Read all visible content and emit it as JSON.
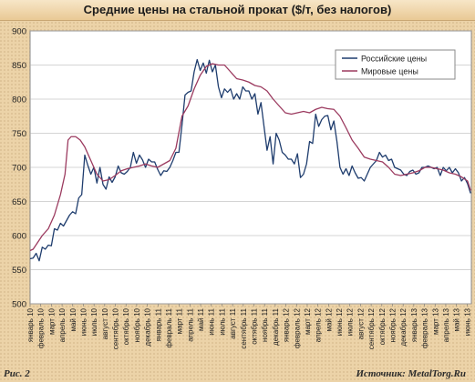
{
  "chart_data": {
    "type": "line",
    "title": "Средние цены на стальной прокат ($/т, без налогов)",
    "ylim": [
      500,
      900
    ],
    "yticks": [
      500,
      550,
      600,
      650,
      700,
      750,
      800,
      850,
      900
    ],
    "xlabel": "",
    "ylabel": "",
    "grid": true,
    "legend_placement": "top-right",
    "categories": [
      "январь 10",
      "февраль 10",
      "март 10",
      "апрель 10",
      "май 10",
      "июнь 10",
      "июль 10",
      "август 10",
      "сентябрь 10",
      "октябрь 10",
      "ноябрь 10",
      "декабрь 10",
      "январь 11",
      "февраль 11",
      "март 11",
      "апрель 11",
      "май 11",
      "июнь 11",
      "июль 11",
      "август 11",
      "сентябрь 11",
      "октябрь 11",
      "ноябрь 11",
      "декабрь 11",
      "январь 12",
      "февраль 12",
      "март 12",
      "апрель 12",
      "май 12",
      "июнь 12",
      "июль 12",
      "август 12",
      "сентябрь 12",
      "октябрь 12",
      "ноябрь 12",
      "декабрь 12",
      "январь 13",
      "февраль 13",
      "март 13",
      "апрель 13",
      "май 13",
      "июнь 13"
    ],
    "series": [
      {
        "name": "Российские цены",
        "color": "#1f3d6e",
        "points": [
          [
            0,
            566
          ],
          [
            0.2,
            567
          ],
          [
            0.4,
            574
          ],
          [
            0.6,
            563
          ],
          [
            0.8,
            583
          ],
          [
            1.0,
            580
          ],
          [
            1.2,
            586
          ],
          [
            1.4,
            585
          ],
          [
            1.6,
            610
          ],
          [
            1.8,
            608
          ],
          [
            2.0,
            618
          ],
          [
            2.2,
            614
          ],
          [
            2.4,
            622
          ],
          [
            2.6,
            630
          ],
          [
            2.8,
            635
          ],
          [
            3.0,
            632
          ],
          [
            3.2,
            655
          ],
          [
            3.4,
            660
          ],
          [
            3.6,
            718
          ],
          [
            3.8,
            703
          ],
          [
            4.0,
            690
          ],
          [
            4.2,
            700
          ],
          [
            4.4,
            677
          ],
          [
            4.6,
            700
          ],
          [
            4.8,
            675
          ],
          [
            5.0,
            668
          ],
          [
            5.2,
            686
          ],
          [
            5.4,
            678
          ],
          [
            5.6,
            686
          ],
          [
            5.8,
            702
          ],
          [
            6.0,
            692
          ],
          [
            6.2,
            690
          ],
          [
            6.4,
            694
          ],
          [
            6.6,
            700
          ],
          [
            6.8,
            722
          ],
          [
            7.0,
            706
          ],
          [
            7.2,
            718
          ],
          [
            7.4,
            711
          ],
          [
            7.6,
            700
          ],
          [
            7.8,
            712
          ],
          [
            8.0,
            708
          ],
          [
            8.2,
            708
          ],
          [
            8.4,
            697
          ],
          [
            8.6,
            688
          ],
          [
            8.8,
            695
          ],
          [
            9.0,
            694
          ],
          [
            9.2,
            700
          ],
          [
            9.4,
            710
          ],
          [
            9.6,
            722
          ],
          [
            9.8,
            722
          ],
          [
            10.0,
            762
          ],
          [
            10.2,
            806
          ],
          [
            10.4,
            810
          ],
          [
            10.6,
            812
          ],
          [
            10.8,
            840
          ],
          [
            11.0,
            858
          ],
          [
            11.2,
            842
          ],
          [
            11.4,
            853
          ],
          [
            11.6,
            838
          ],
          [
            11.8,
            857
          ],
          [
            12.0,
            840
          ],
          [
            12.2,
            850
          ],
          [
            12.4,
            818
          ],
          [
            12.6,
            802
          ],
          [
            12.8,
            815
          ],
          [
            13.0,
            810
          ],
          [
            13.2,
            815
          ],
          [
            13.4,
            800
          ],
          [
            13.6,
            808
          ],
          [
            13.8,
            800
          ],
          [
            14.0,
            818
          ],
          [
            14.2,
            812
          ],
          [
            14.4,
            812
          ],
          [
            14.6,
            800
          ],
          [
            14.8,
            808
          ],
          [
            15.0,
            778
          ],
          [
            15.2,
            795
          ],
          [
            15.4,
            760
          ],
          [
            15.6,
            725
          ],
          [
            15.8,
            745
          ],
          [
            16.0,
            705
          ],
          [
            16.2,
            750
          ],
          [
            16.4,
            740
          ],
          [
            16.6,
            722
          ],
          [
            16.8,
            718
          ],
          [
            17.0,
            712
          ],
          [
            17.2,
            712
          ],
          [
            17.4,
            705
          ],
          [
            17.6,
            720
          ],
          [
            17.8,
            685
          ],
          [
            18.0,
            690
          ],
          [
            18.2,
            705
          ],
          [
            18.4,
            738
          ],
          [
            18.6,
            735
          ],
          [
            18.8,
            778
          ],
          [
            19.0,
            760
          ],
          [
            19.2,
            770
          ],
          [
            19.4,
            775
          ],
          [
            19.6,
            776
          ],
          [
            19.8,
            755
          ],
          [
            20.0,
            768
          ],
          [
            20.2,
            738
          ],
          [
            20.4,
            700
          ],
          [
            20.6,
            690
          ],
          [
            20.8,
            698
          ],
          [
            21.0,
            688
          ],
          [
            21.2,
            702
          ],
          [
            21.4,
            692
          ],
          [
            21.6,
            684
          ],
          [
            21.8,
            685
          ],
          [
            22.0,
            680
          ],
          [
            22.2,
            690
          ],
          [
            22.4,
            700
          ],
          [
            22.6,
            705
          ],
          [
            22.8,
            710
          ],
          [
            23.0,
            722
          ],
          [
            23.2,
            715
          ],
          [
            23.4,
            718
          ],
          [
            23.6,
            710
          ],
          [
            23.8,
            712
          ],
          [
            24.0,
            700
          ],
          [
            24.2,
            698
          ],
          [
            24.4,
            696
          ],
          [
            24.6,
            690
          ],
          [
            24.8,
            688
          ],
          [
            25.0,
            694
          ],
          [
            25.2,
            696
          ],
          [
            25.4,
            690
          ],
          [
            25.6,
            692
          ],
          [
            25.8,
            700
          ],
          [
            26.0,
            700
          ],
          [
            26.2,
            702
          ],
          [
            26.4,
            700
          ],
          [
            26.6,
            698
          ],
          [
            26.8,
            700
          ],
          [
            27.0,
            688
          ],
          [
            27.2,
            700
          ],
          [
            27.4,
            695
          ],
          [
            27.6,
            700
          ],
          [
            27.8,
            692
          ],
          [
            28.0,
            698
          ],
          [
            28.2,
            692
          ],
          [
            28.4,
            680
          ],
          [
            28.6,
            685
          ],
          [
            28.8,
            676
          ],
          [
            29.0,
            662
          ]
        ]
      },
      {
        "name": "Мировые цены",
        "color": "#9b3a5f",
        "points": [
          [
            0,
            578
          ],
          [
            0.2,
            580
          ],
          [
            0.5,
            590
          ],
          [
            0.8,
            600
          ],
          [
            1.2,
            610
          ],
          [
            1.6,
            630
          ],
          [
            2.0,
            660
          ],
          [
            2.3,
            690
          ],
          [
            2.5,
            740
          ],
          [
            2.7,
            745
          ],
          [
            3.0,
            745
          ],
          [
            3.3,
            740
          ],
          [
            3.6,
            730
          ],
          [
            4.0,
            710
          ],
          [
            4.4,
            690
          ],
          [
            4.8,
            680
          ],
          [
            5.2,
            682
          ],
          [
            5.6,
            688
          ],
          [
            6.0,
            695
          ],
          [
            6.4,
            698
          ],
          [
            6.8,
            700
          ],
          [
            7.2,
            702
          ],
          [
            7.6,
            705
          ],
          [
            8.0,
            702
          ],
          [
            8.4,
            700
          ],
          [
            8.8,
            705
          ],
          [
            9.2,
            710
          ],
          [
            9.6,
            728
          ],
          [
            10.0,
            775
          ],
          [
            10.4,
            790
          ],
          [
            10.8,
            815
          ],
          [
            11.2,
            835
          ],
          [
            11.6,
            848
          ],
          [
            12.0,
            852
          ],
          [
            12.4,
            850
          ],
          [
            12.8,
            850
          ],
          [
            13.2,
            840
          ],
          [
            13.6,
            830
          ],
          [
            14.0,
            828
          ],
          [
            14.4,
            825
          ],
          [
            14.8,
            820
          ],
          [
            15.2,
            818
          ],
          [
            15.6,
            812
          ],
          [
            16.0,
            800
          ],
          [
            16.4,
            790
          ],
          [
            16.8,
            780
          ],
          [
            17.2,
            778
          ],
          [
            17.6,
            780
          ],
          [
            18.0,
            782
          ],
          [
            18.4,
            780
          ],
          [
            18.8,
            785
          ],
          [
            19.2,
            788
          ],
          [
            19.6,
            786
          ],
          [
            20.0,
            785
          ],
          [
            20.4,
            775
          ],
          [
            20.8,
            758
          ],
          [
            21.2,
            740
          ],
          [
            21.6,
            728
          ],
          [
            22.0,
            715
          ],
          [
            22.4,
            712
          ],
          [
            22.8,
            710
          ],
          [
            23.2,
            708
          ],
          [
            23.6,
            700
          ],
          [
            24.0,
            690
          ],
          [
            24.4,
            688
          ],
          [
            24.8,
            690
          ],
          [
            25.2,
            692
          ],
          [
            25.6,
            695
          ],
          [
            26.0,
            700
          ],
          [
            26.4,
            700
          ],
          [
            26.8,
            698
          ],
          [
            27.2,
            696
          ],
          [
            27.6,
            692
          ],
          [
            28.0,
            690
          ],
          [
            28.4,
            686
          ],
          [
            28.8,
            680
          ],
          [
            29.0,
            666
          ]
        ]
      }
    ],
    "x_range": [
      0,
      29.05
    ]
  },
  "footer": {
    "figure_label": "Рис. 2",
    "source": "Источник: MetalTorg.Ru"
  }
}
